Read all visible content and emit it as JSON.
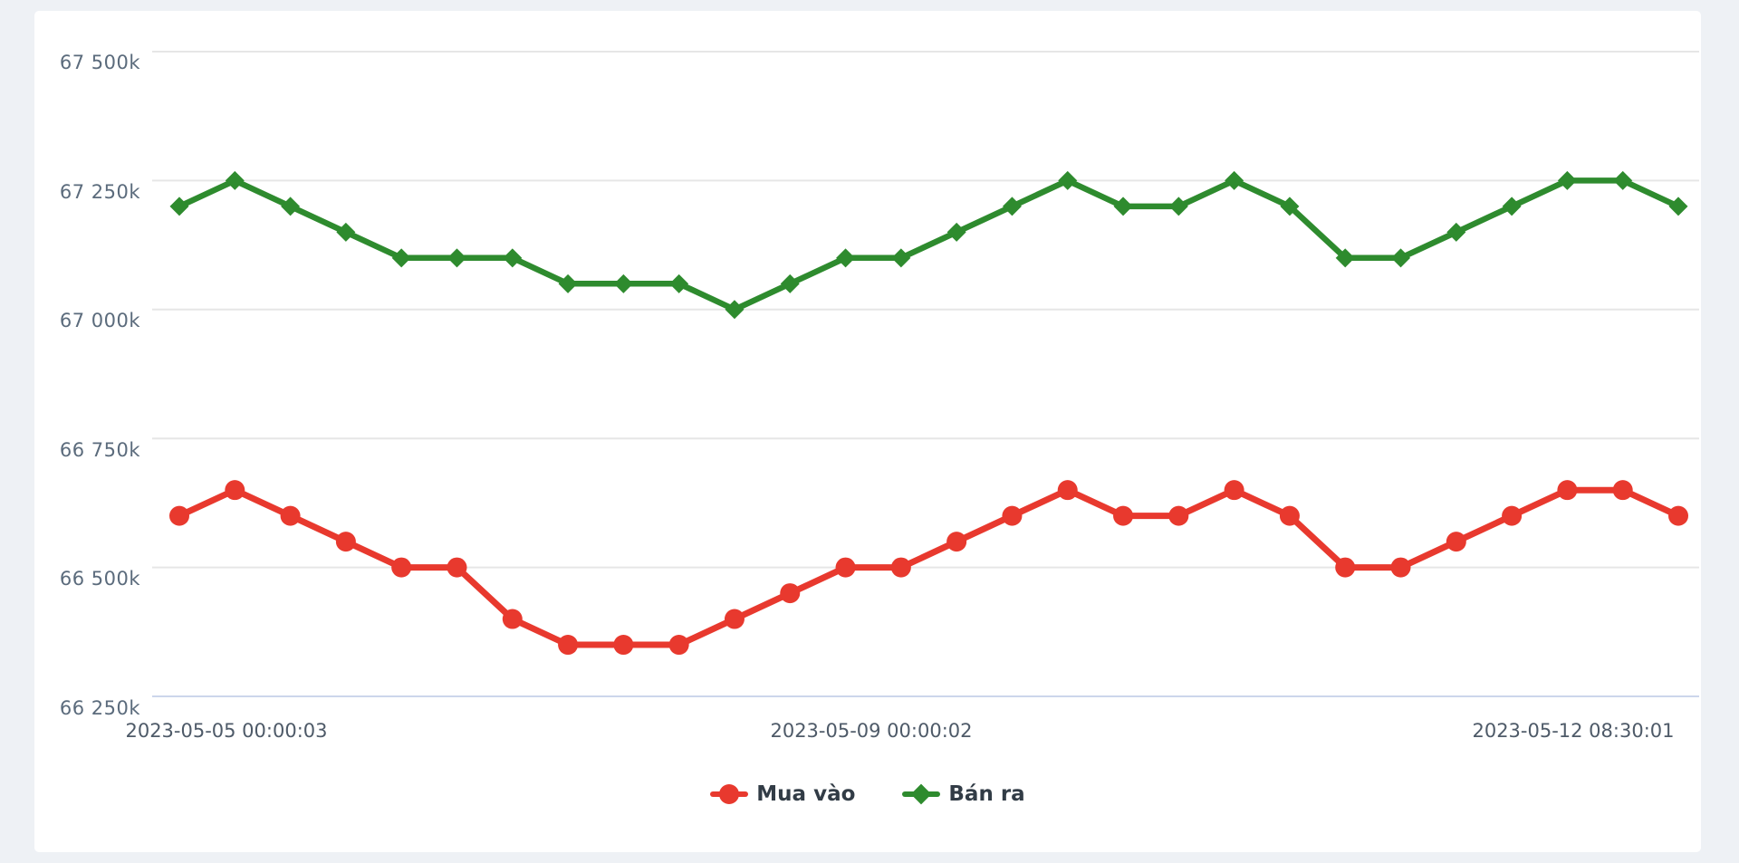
{
  "page": {
    "background_color": "#eef1f5",
    "card_background_color": "#ffffff"
  },
  "chart_data": {
    "type": "line",
    "title": "",
    "xlabel": "",
    "ylabel": "",
    "grid": true,
    "grid_color": "#e6e6e6",
    "axis_line_color": "#ccd6eb",
    "ylim": [
      66250,
      67500
    ],
    "y_tick_labels": [
      "67 500k",
      "67 250k",
      "67 000k",
      "66 750k",
      "66 500k",
      "66 250k"
    ],
    "y_tick_values": [
      67500,
      67250,
      67000,
      66750,
      66500,
      66250
    ],
    "x_tick_labels": [
      "2023-05-05 00:00:03",
      "2023-05-09 00:00:02",
      "2023-05-12 08:30:01"
    ],
    "legend_position": "bottom-center",
    "series": [
      {
        "name": "Mua vào",
        "color": "#e8392e",
        "marker": "circle",
        "values": [
          66600,
          66650,
          66600,
          66550,
          66500,
          66500,
          66400,
          66350,
          66350,
          66350,
          66400,
          66450,
          66500,
          66500,
          66550,
          66600,
          66650,
          66600,
          66600,
          66650,
          66600,
          66500,
          66500,
          66550,
          66600,
          66650,
          66650,
          66600
        ]
      },
      {
        "name": "Bán ra",
        "color": "#2e8b2e",
        "marker": "diamond",
        "values": [
          67200,
          67250,
          67200,
          67150,
          67100,
          67100,
          67100,
          67050,
          67050,
          67050,
          67000,
          67050,
          67100,
          67100,
          67150,
          67200,
          67250,
          67200,
          67200,
          67250,
          67200,
          67100,
          67100,
          67150,
          67200,
          67250,
          67250,
          67200
        ]
      }
    ]
  }
}
